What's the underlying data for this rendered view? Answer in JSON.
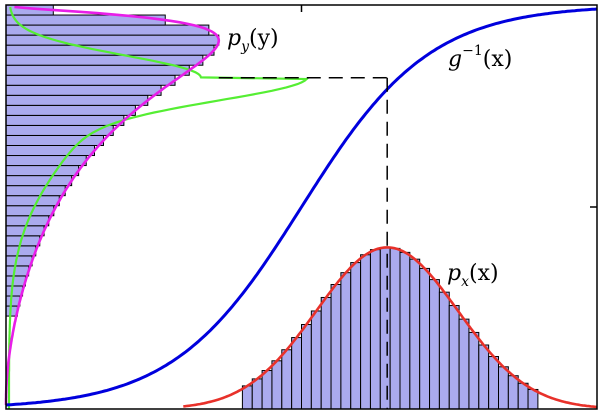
{
  "labels": {
    "inverse_g": {
      "func": "g",
      "sup": "−1",
      "arg": "(x)"
    },
    "p_y": {
      "func": "p",
      "sub": "y",
      "arg": "(y)"
    },
    "p_x": {
      "func": "p",
      "sub": "x",
      "arg": "(x)"
    }
  },
  "colors": {
    "inverse_curve": "#0000dd",
    "p_x_curve": "#e8312a",
    "p_y_curve": "#e81ee8",
    "green_curve": "#55ee33",
    "hist_fill": "#aaaaee",
    "hist_stroke": "#000000",
    "guide": "#000000"
  },
  "chart_data": {
    "type": "diagram",
    "xlim": [
      0,
      1
    ],
    "ylim": [
      0,
      1
    ],
    "ticks": {
      "right_y": [
        0.5
      ],
      "top_x": [
        0.5
      ]
    },
    "marked_point": {
      "x": 0.645,
      "y": 0.82
    },
    "inverse_curve": {
      "center": 0.5,
      "steepness": 9.2
    },
    "p_x": {
      "mean": 0.645,
      "sd": 0.12,
      "peak_height": 0.4,
      "bins": 30
    },
    "p_y": {
      "peak_y": 0.915,
      "bins": 31
    },
    "green_curve": {
      "peak_y": 0.82
    },
    "grid": false,
    "legend": "none"
  }
}
